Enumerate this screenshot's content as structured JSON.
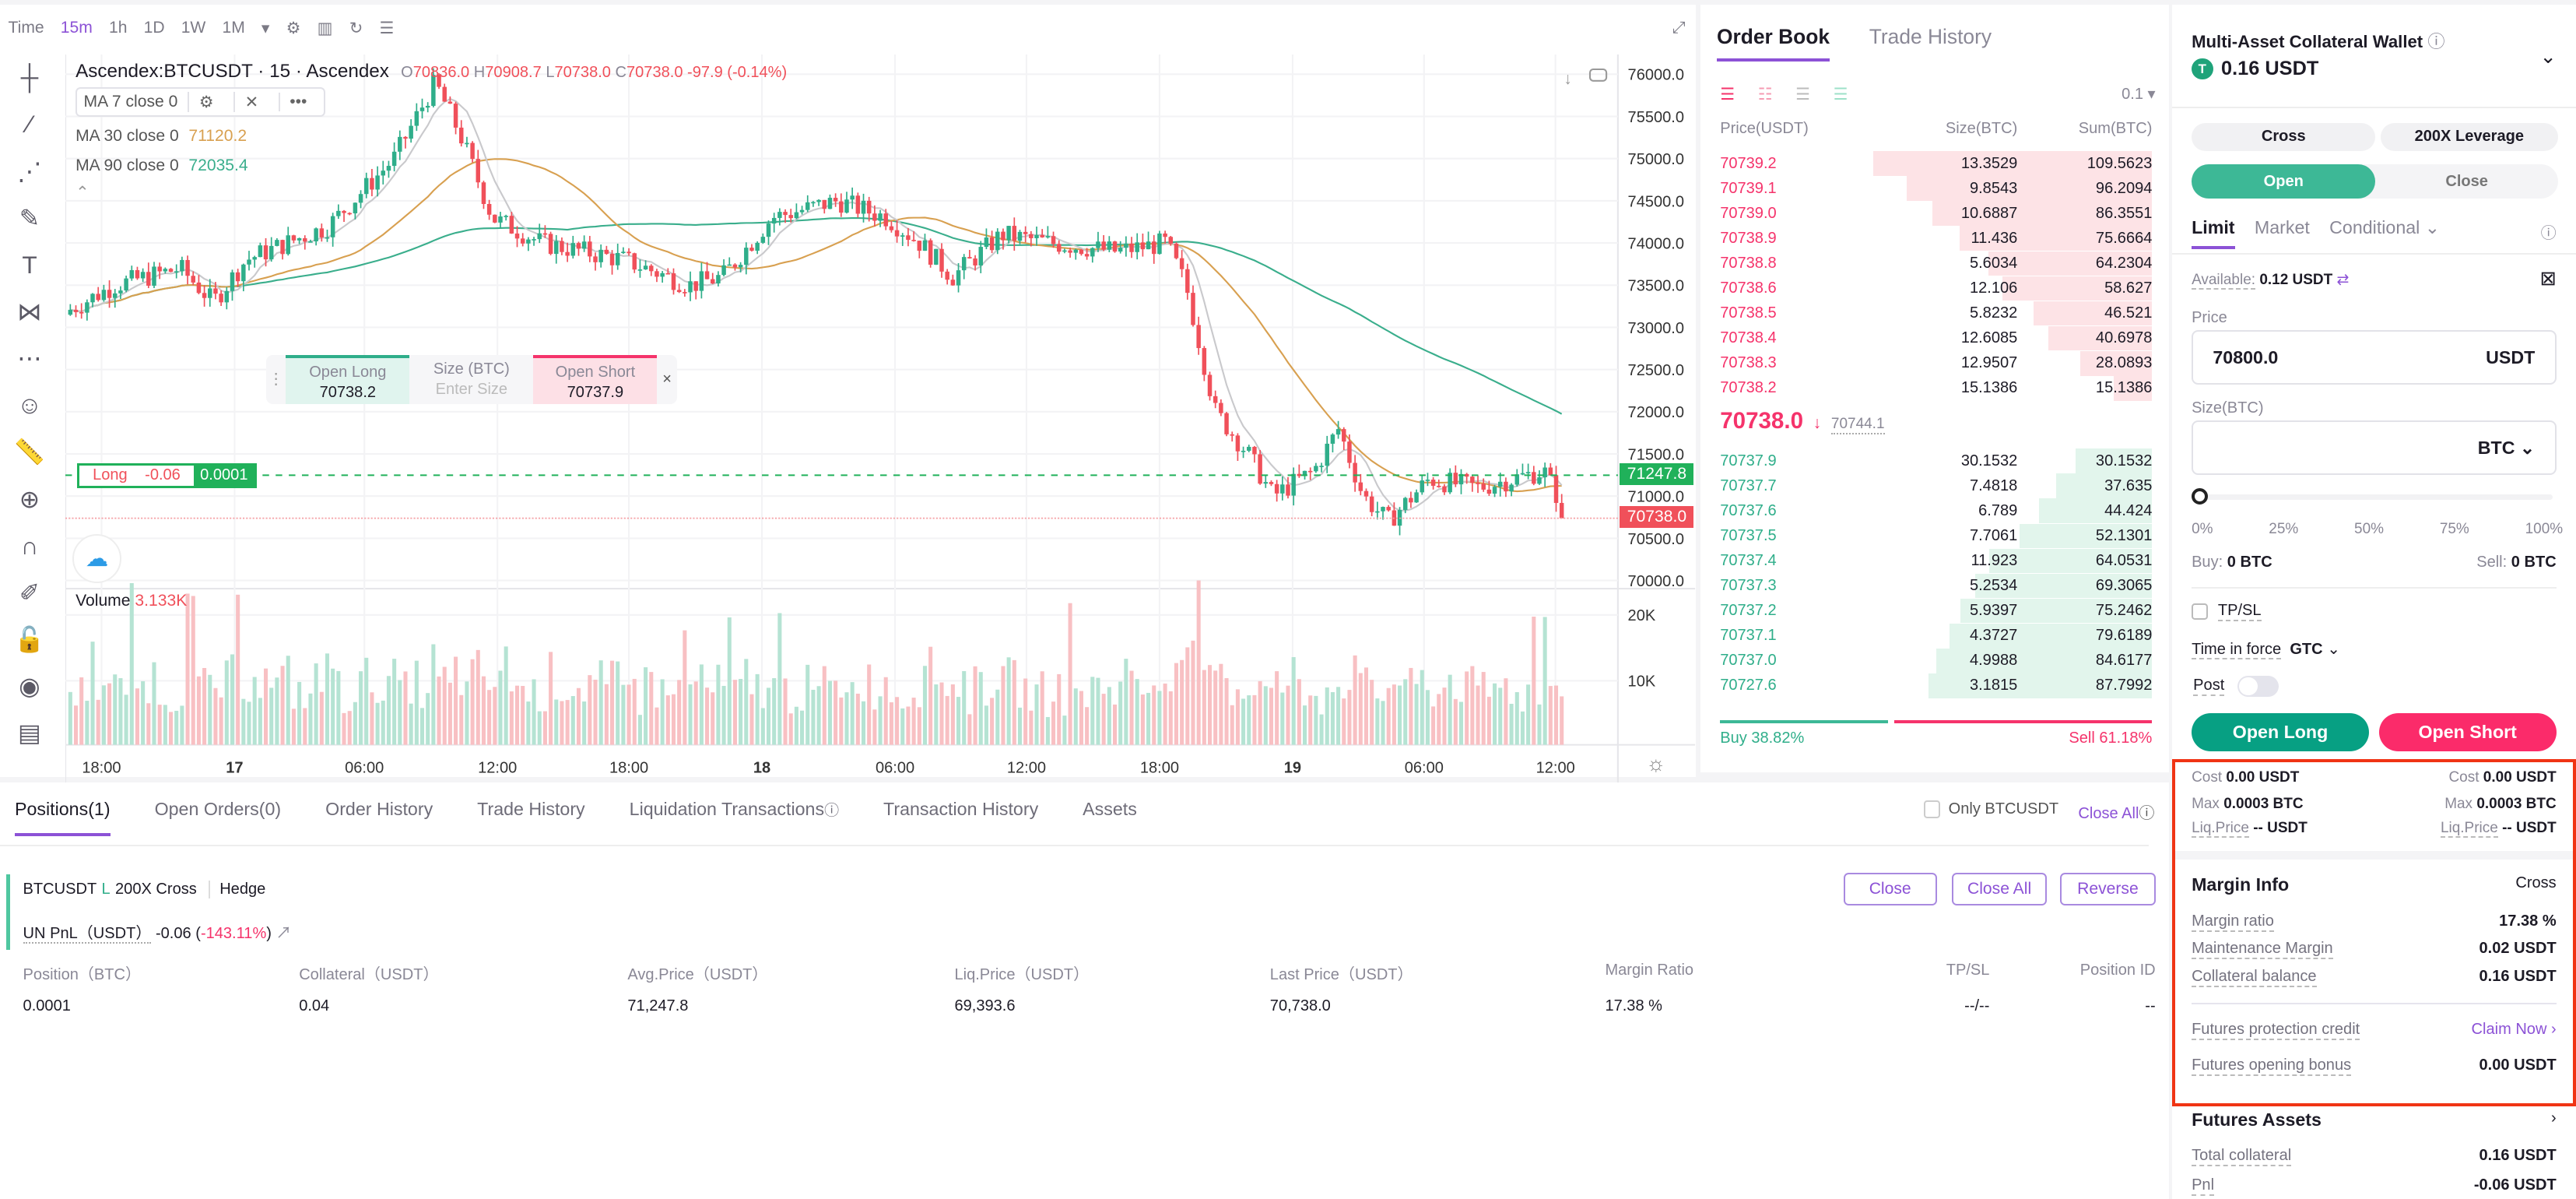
{
  "toolbar": {
    "time_label": "Time",
    "intervals": [
      "15m",
      "1h",
      "1D",
      "1W",
      "1M"
    ],
    "active_interval": "15m"
  },
  "chart": {
    "symbol": "Ascendex:BTCUSDT",
    "interval": "15",
    "exchange": "Ascendex",
    "ohlc": {
      "o_label": "O",
      "o": "70836.0",
      "h_label": "H",
      "h": "70908.7",
      "l_label": "L",
      "l": "70738.0",
      "c_label": "C",
      "c": "70738.0",
      "change": "-97.9 (-0.14%)"
    },
    "indicators": [
      {
        "label": "MA 7 close 0",
        "value": ""
      },
      {
        "label": "MA 30 close 0",
        "value": "71120.2"
      },
      {
        "label": "MA 90 close 0",
        "value": "72035.4"
      }
    ],
    "price_ticks": [
      "76000.0",
      "75500.0",
      "75000.0",
      "74500.0",
      "74000.0",
      "73500.0",
      "73000.0",
      "72500.0",
      "72000.0",
      "71500.0",
      "71000.0",
      "70500.0",
      "70000.0"
    ],
    "volume_label": "Volume",
    "volume_value": "3.133K",
    "volume_ticks": [
      "20K",
      "10K"
    ],
    "time_ticks": [
      "18:00",
      "17",
      "06:00",
      "12:00",
      "18:00",
      "18",
      "06:00",
      "12:00",
      "18:00",
      "19",
      "06:00",
      "12:00"
    ],
    "position_line": {
      "side": "Long",
      "pnl": "-0.06",
      "size": "0.0001",
      "price": "71247.8"
    },
    "last_price": "70738.0",
    "quick_trade": {
      "open_long_label": "Open Long",
      "open_long_price": "70738.2",
      "size_label": "Size (BTC)",
      "size_placeholder": "Enter Size",
      "open_short_label": "Open Short",
      "open_short_price": "70737.9",
      "close": "×"
    }
  },
  "colors": {
    "up": "#2fae8a",
    "down": "#f0505a",
    "accent": "#8c52d6",
    "ma7": "#c9c9cc",
    "ma30": "#d8a050",
    "ma90": "#3aae8c"
  },
  "orderbook": {
    "tabs": [
      "Order Book",
      "Trade History"
    ],
    "precision": "0.1",
    "headers": {
      "price": "Price(USDT)",
      "size": "Size(BTC)",
      "sum": "Sum(BTC)"
    },
    "asks": [
      {
        "price": "70739.2",
        "size": "13.3529",
        "sum": "109.5623"
      },
      {
        "price": "70739.1",
        "size": "9.8543",
        "sum": "96.2094"
      },
      {
        "price": "70739.0",
        "size": "10.6887",
        "sum": "86.3551"
      },
      {
        "price": "70738.9",
        "size": "11.436",
        "sum": "75.6664"
      },
      {
        "price": "70738.8",
        "size": "5.6034",
        "sum": "64.2304"
      },
      {
        "price": "70738.6",
        "size": "12.106",
        "sum": "58.627"
      },
      {
        "price": "70738.5",
        "size": "5.8232",
        "sum": "46.521"
      },
      {
        "price": "70738.4",
        "size": "12.6085",
        "sum": "40.6978"
      },
      {
        "price": "70738.3",
        "size": "12.9507",
        "sum": "28.0893"
      },
      {
        "price": "70738.2",
        "size": "15.1386",
        "sum": "15.1386"
      }
    ],
    "mid": {
      "price": "70738.0",
      "arrow": "↓",
      "mark": "70744.1"
    },
    "bids": [
      {
        "price": "70737.9",
        "size": "30.1532",
        "sum": "30.1532"
      },
      {
        "price": "70737.7",
        "size": "7.4818",
        "sum": "37.635"
      },
      {
        "price": "70737.6",
        "size": "6.789",
        "sum": "44.424"
      },
      {
        "price": "70737.5",
        "size": "7.7061",
        "sum": "52.1301"
      },
      {
        "price": "70737.4",
        "size": "11.923",
        "sum": "64.0531"
      },
      {
        "price": "70737.3",
        "size": "5.2534",
        "sum": "69.3065"
      },
      {
        "price": "70737.2",
        "size": "5.9397",
        "sum": "75.2462"
      },
      {
        "price": "70737.1",
        "size": "4.3727",
        "sum": "79.6189"
      },
      {
        "price": "70737.0",
        "size": "4.9988",
        "sum": "84.6177"
      },
      {
        "price": "70727.6",
        "size": "3.1815",
        "sum": "87.7992"
      }
    ],
    "buy_label": "Buy 38.82%",
    "sell_label": "Sell 61.18%",
    "buy_pct": 38.82
  },
  "panel": {
    "wallet_title": "Multi-Asset Collateral Wallet",
    "balance": "0.16 USDT",
    "coin_letter": "T",
    "margin_mode": "Cross",
    "leverage": "200X Leverage",
    "open": "Open",
    "close": "Close",
    "order_types": [
      "Limit",
      "Market",
      "Conditional"
    ],
    "available_label": "Available:",
    "available_value": "0.12 USDT",
    "price_label": "Price",
    "price_value": "70800.0",
    "price_unit": "USDT",
    "size_label": "Size(BTC)",
    "size_value": "",
    "size_unit": "BTC",
    "slider_marks": [
      "0%",
      "25%",
      "50%",
      "75%",
      "100%"
    ],
    "slider_value": 0,
    "buy_label": "Buy:",
    "buy_value": "0 BTC",
    "sell_label": "Sell:",
    "sell_value": "0 BTC",
    "tpsl": "TP/SL",
    "tif_label": "Time in force",
    "tif_value": "GTC",
    "post_label": "Post",
    "open_long": "Open Long",
    "open_short": "Open Short",
    "cost_label": "Cost",
    "long_cost": "0.00 USDT",
    "short_cost": "0.00 USDT",
    "max_label": "Max",
    "long_max": "0.0003 BTC",
    "short_max": "0.0003 BTC",
    "liq_label": "Liq.Price",
    "long_liq": "-- USDT",
    "short_liq": "-- USDT",
    "margin_info": {
      "title": "Margin Info",
      "mode": "Cross",
      "rows": [
        {
          "k": "Margin ratio",
          "v": "17.38 %"
        },
        {
          "k": "Maintenance Margin",
          "v": "0.02 USDT"
        },
        {
          "k": "Collateral balance",
          "v": "0.16 USDT"
        }
      ],
      "credit_label": "Futures protection credit",
      "credit_action": "Claim Now",
      "bonus_label": "Futures opening bonus",
      "bonus_value": "0.00 USDT"
    },
    "futures_assets": {
      "title": "Futures Assets",
      "rows": [
        {
          "k": "Total collateral",
          "v": "0.16 USDT"
        },
        {
          "k": "Pnl",
          "v": "-0.06 USDT"
        }
      ]
    }
  },
  "positions": {
    "tabs": [
      "Positions(1)",
      "Open Orders(0)",
      "Order History",
      "Trade History",
      "Liquidation Transactions",
      "Transaction History",
      "Assets"
    ],
    "only_label": "Only BTCUSDT",
    "close_all": "Close All",
    "symbol": "BTCUSDT",
    "side": "L",
    "leverage": "200X Cross",
    "mode": "Hedge",
    "unpnl_label": "UN PnL（USDT）",
    "unpnl": "-0.06",
    "unpnl_pct": "-143.11%",
    "buttons": [
      "Close",
      "Close All",
      "Reverse"
    ],
    "columns": [
      "Position（BTC）",
      "Collateral（USDT）",
      "Avg.Price（USDT）",
      "Liq.Price（USDT）",
      "Last Price（USDT）",
      "Margin Ratio",
      "TP/SL",
      "Position ID"
    ],
    "row": [
      "0.0001",
      "0.04",
      "71,247.8",
      "69,393.6",
      "70,738.0",
      "17.38 %",
      "--/--",
      "--"
    ]
  }
}
